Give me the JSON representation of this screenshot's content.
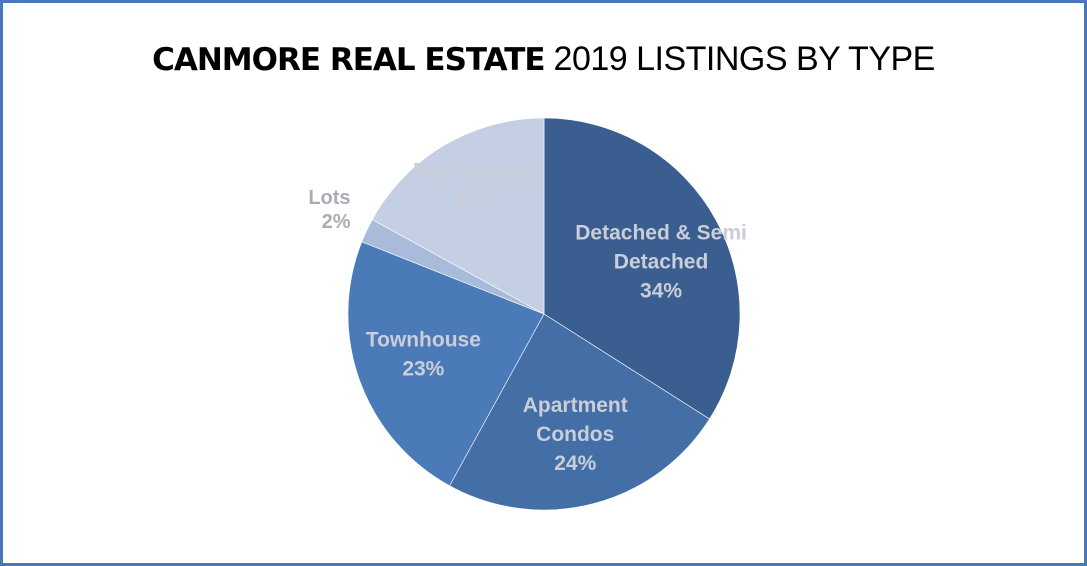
{
  "title": {
    "bold": "CANMORE REAL ESTATE",
    "light": "2019 LISTINGS BY TYPE"
  },
  "colors": {
    "frame": "#4a78b6",
    "label_light": "#c9ced8",
    "label_outside": "#a9adb4"
  },
  "chart_data": {
    "type": "pie",
    "title": "CANMORE REAL ESTATE 2019 LISTINGS BY TYPE",
    "slices": [
      {
        "label": "Detached & Semi Detached",
        "lines": [
          "Detached & Semi",
          "Detached"
        ],
        "value": 34,
        "pct_label": "34%",
        "color": "#3a5e8f"
      },
      {
        "label": "Apartment Condos",
        "lines": [
          "Apartment",
          "Condos"
        ],
        "value": 24,
        "pct_label": "24%",
        "color": "#446ea6"
      },
      {
        "label": "Townhouse",
        "lines": [
          "Townhouse"
        ],
        "value": 23,
        "pct_label": "23%",
        "color": "#4b7ab8"
      },
      {
        "label": "Lots",
        "lines": [
          "Lots"
        ],
        "value": 2,
        "pct_label": "2%",
        "color": "#a8bbdb",
        "outside": true
      },
      {
        "label": "Recreational",
        "lines": [
          "Recreational"
        ],
        "value": 17,
        "pct_label": "17%",
        "color": "#c4cfe3"
      }
    ]
  }
}
